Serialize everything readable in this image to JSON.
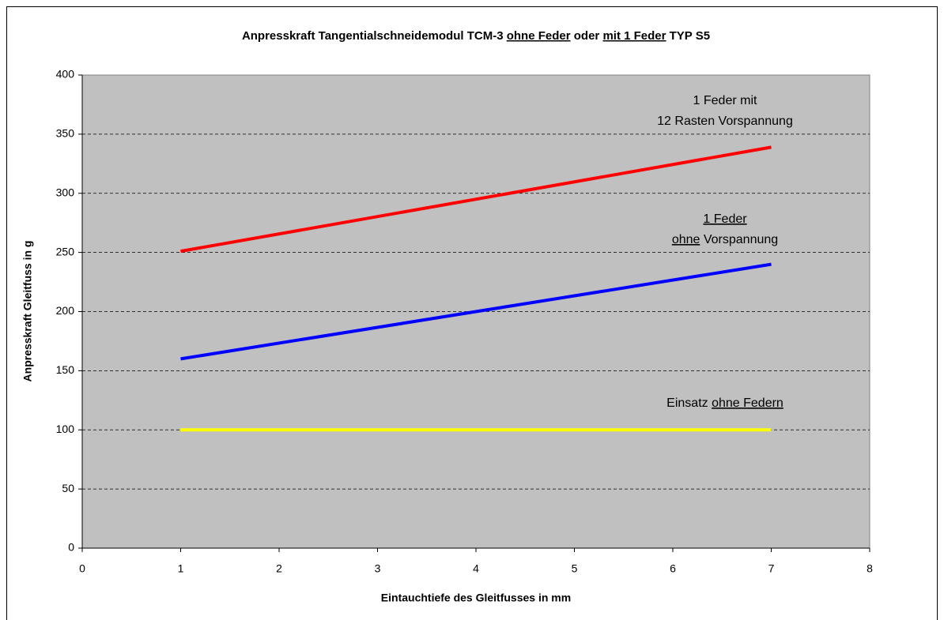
{
  "chart_data": {
    "type": "line",
    "title": [
      {
        "text": "Anpresskraft Tangentialschneidemodul TCM-3",
        "underline": false
      },
      {
        "text": "ohne Feder",
        "underline": true
      },
      {
        "text": "oder",
        "underline": false
      },
      {
        "text": "mit 1 Feder",
        "underline": true
      },
      {
        "text": "TYP S5",
        "underline": false
      }
    ],
    "x_label": "Eintauchtiefe des Gleitfusses in mm",
    "y_label": "Anpresskraft Gleitfuss in g",
    "x": [
      1,
      7
    ],
    "series": [
      {
        "color": "#ff0000",
        "values": [
          251,
          339
        ]
      },
      {
        "color": "#0000ff",
        "values": [
          160,
          240
        ]
      },
      {
        "color": "#ffff00",
        "values": [
          100,
          100
        ]
      }
    ],
    "annotations": [
      {
        "lines": [
          [
            {
              "text": "1 Feder mit",
              "underline": false
            }
          ],
          [
            {
              "text": "12 Rasten Vorspannung",
              "underline": false
            }
          ]
        ]
      },
      {
        "lines": [
          [
            {
              "text": "1 Feder",
              "underline": true
            }
          ],
          [
            {
              "text": "ohne",
              "underline": true
            },
            {
              "text": "Vorspannung",
              "underline": false
            }
          ]
        ]
      },
      {
        "lines": [
          [
            {
              "text": "Einsatz",
              "underline": false
            },
            {
              "text": "ohne Federn",
              "underline": true
            }
          ]
        ]
      }
    ],
    "xlim": [
      0,
      8
    ],
    "xticks": [
      0,
      1,
      2,
      3,
      4,
      5,
      6,
      7,
      8
    ],
    "ylim": [
      0,
      400
    ],
    "yticks": [
      0,
      50,
      100,
      150,
      200,
      250,
      300,
      350,
      400
    ],
    "grid": true,
    "plot_background": "#c0c0c0"
  }
}
